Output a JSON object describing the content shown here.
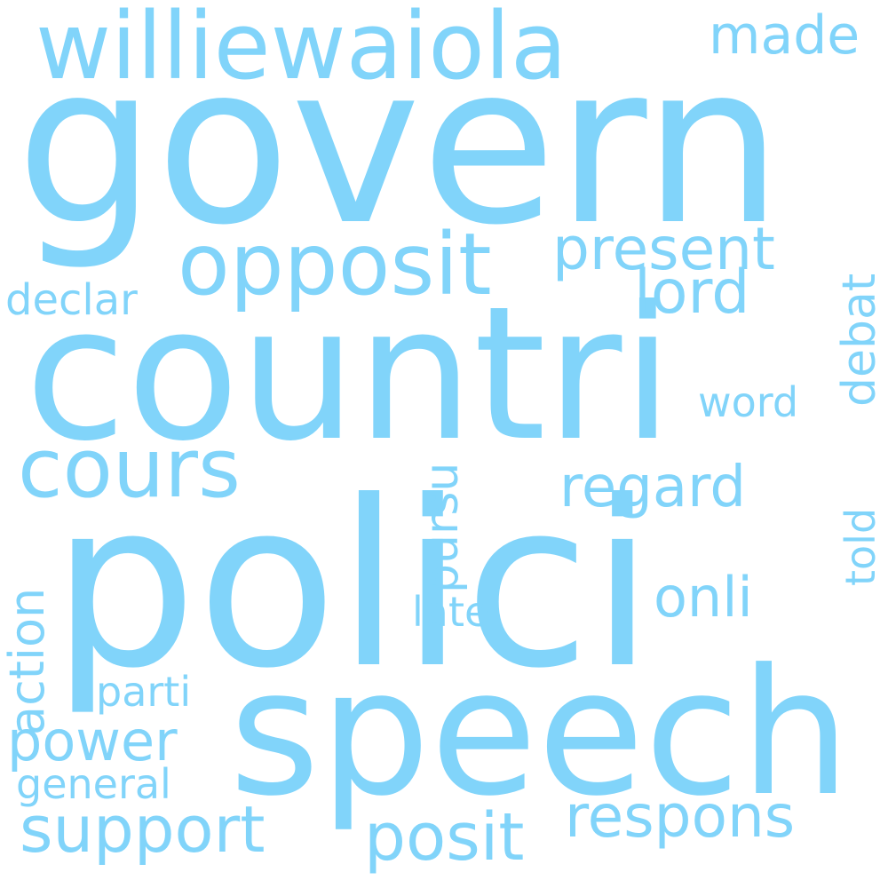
{
  "word_color": "#81d4fa",
  "background_color": "#ffffff",
  "words": {
    "govern": "govern",
    "countri": "countri",
    "polici": "polici",
    "speech": "speech",
    "williewaiola": "williewaiola",
    "opposit": "opposit",
    "present": "present",
    "made": "made",
    "lord": "lord",
    "declar": "declar",
    "debat": "debat",
    "word": "word",
    "cours": "cours",
    "regard": "regard",
    "pursu": "pursu",
    "told": "told",
    "onli": "onli",
    "late": "late",
    "action": "action",
    "parti": "parti",
    "power": "power",
    "general": "general",
    "support": "support",
    "posit": "posit",
    "respons": "respons"
  }
}
